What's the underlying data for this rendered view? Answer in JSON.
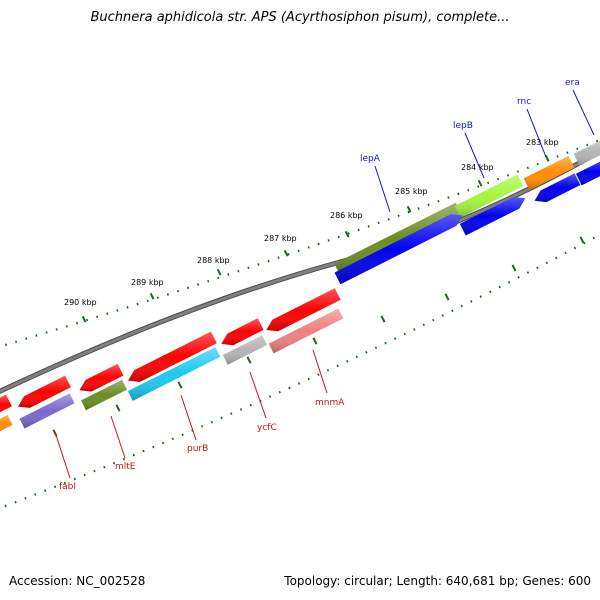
{
  "title": "Buchnera aphidicola str. APS (Acyrthosiphon pisum), complete...",
  "footer": {
    "accession": "Accession: NC_002528",
    "summary": "Topology: circular; Length: 640,681 bp; Genes: 600"
  },
  "scale_labels": [
    "290 kbp",
    "289 kbp",
    "288 kbp",
    "287 kbp",
    "286 kbp",
    "285 kbp",
    "284 kbp",
    "283 kbp"
  ],
  "gene_labels_top": [
    "lepA",
    "lepB",
    "rnc",
    "era"
  ],
  "gene_labels_bottom": [
    "fabI",
    "mltE",
    "purB",
    "ycfC",
    "mnmA"
  ],
  "colors": {
    "cds_forward": "#ff0000",
    "cds_reverse": "#0000ee",
    "cog_olive": "#6b8e23",
    "cog_lime": "#a3f53d",
    "cog_orange": "#ff8c00",
    "cog_grey": "#b3b3b3",
    "cog_cyan": "#1ec8f0",
    "cog_purple": "#7b68cc",
    "cog_salmon": "#f08080",
    "backbone": "#808080",
    "tick_green": "#1a6e1a",
    "label_top": "#1414c8",
    "label_bottom": "#c81414"
  }
}
